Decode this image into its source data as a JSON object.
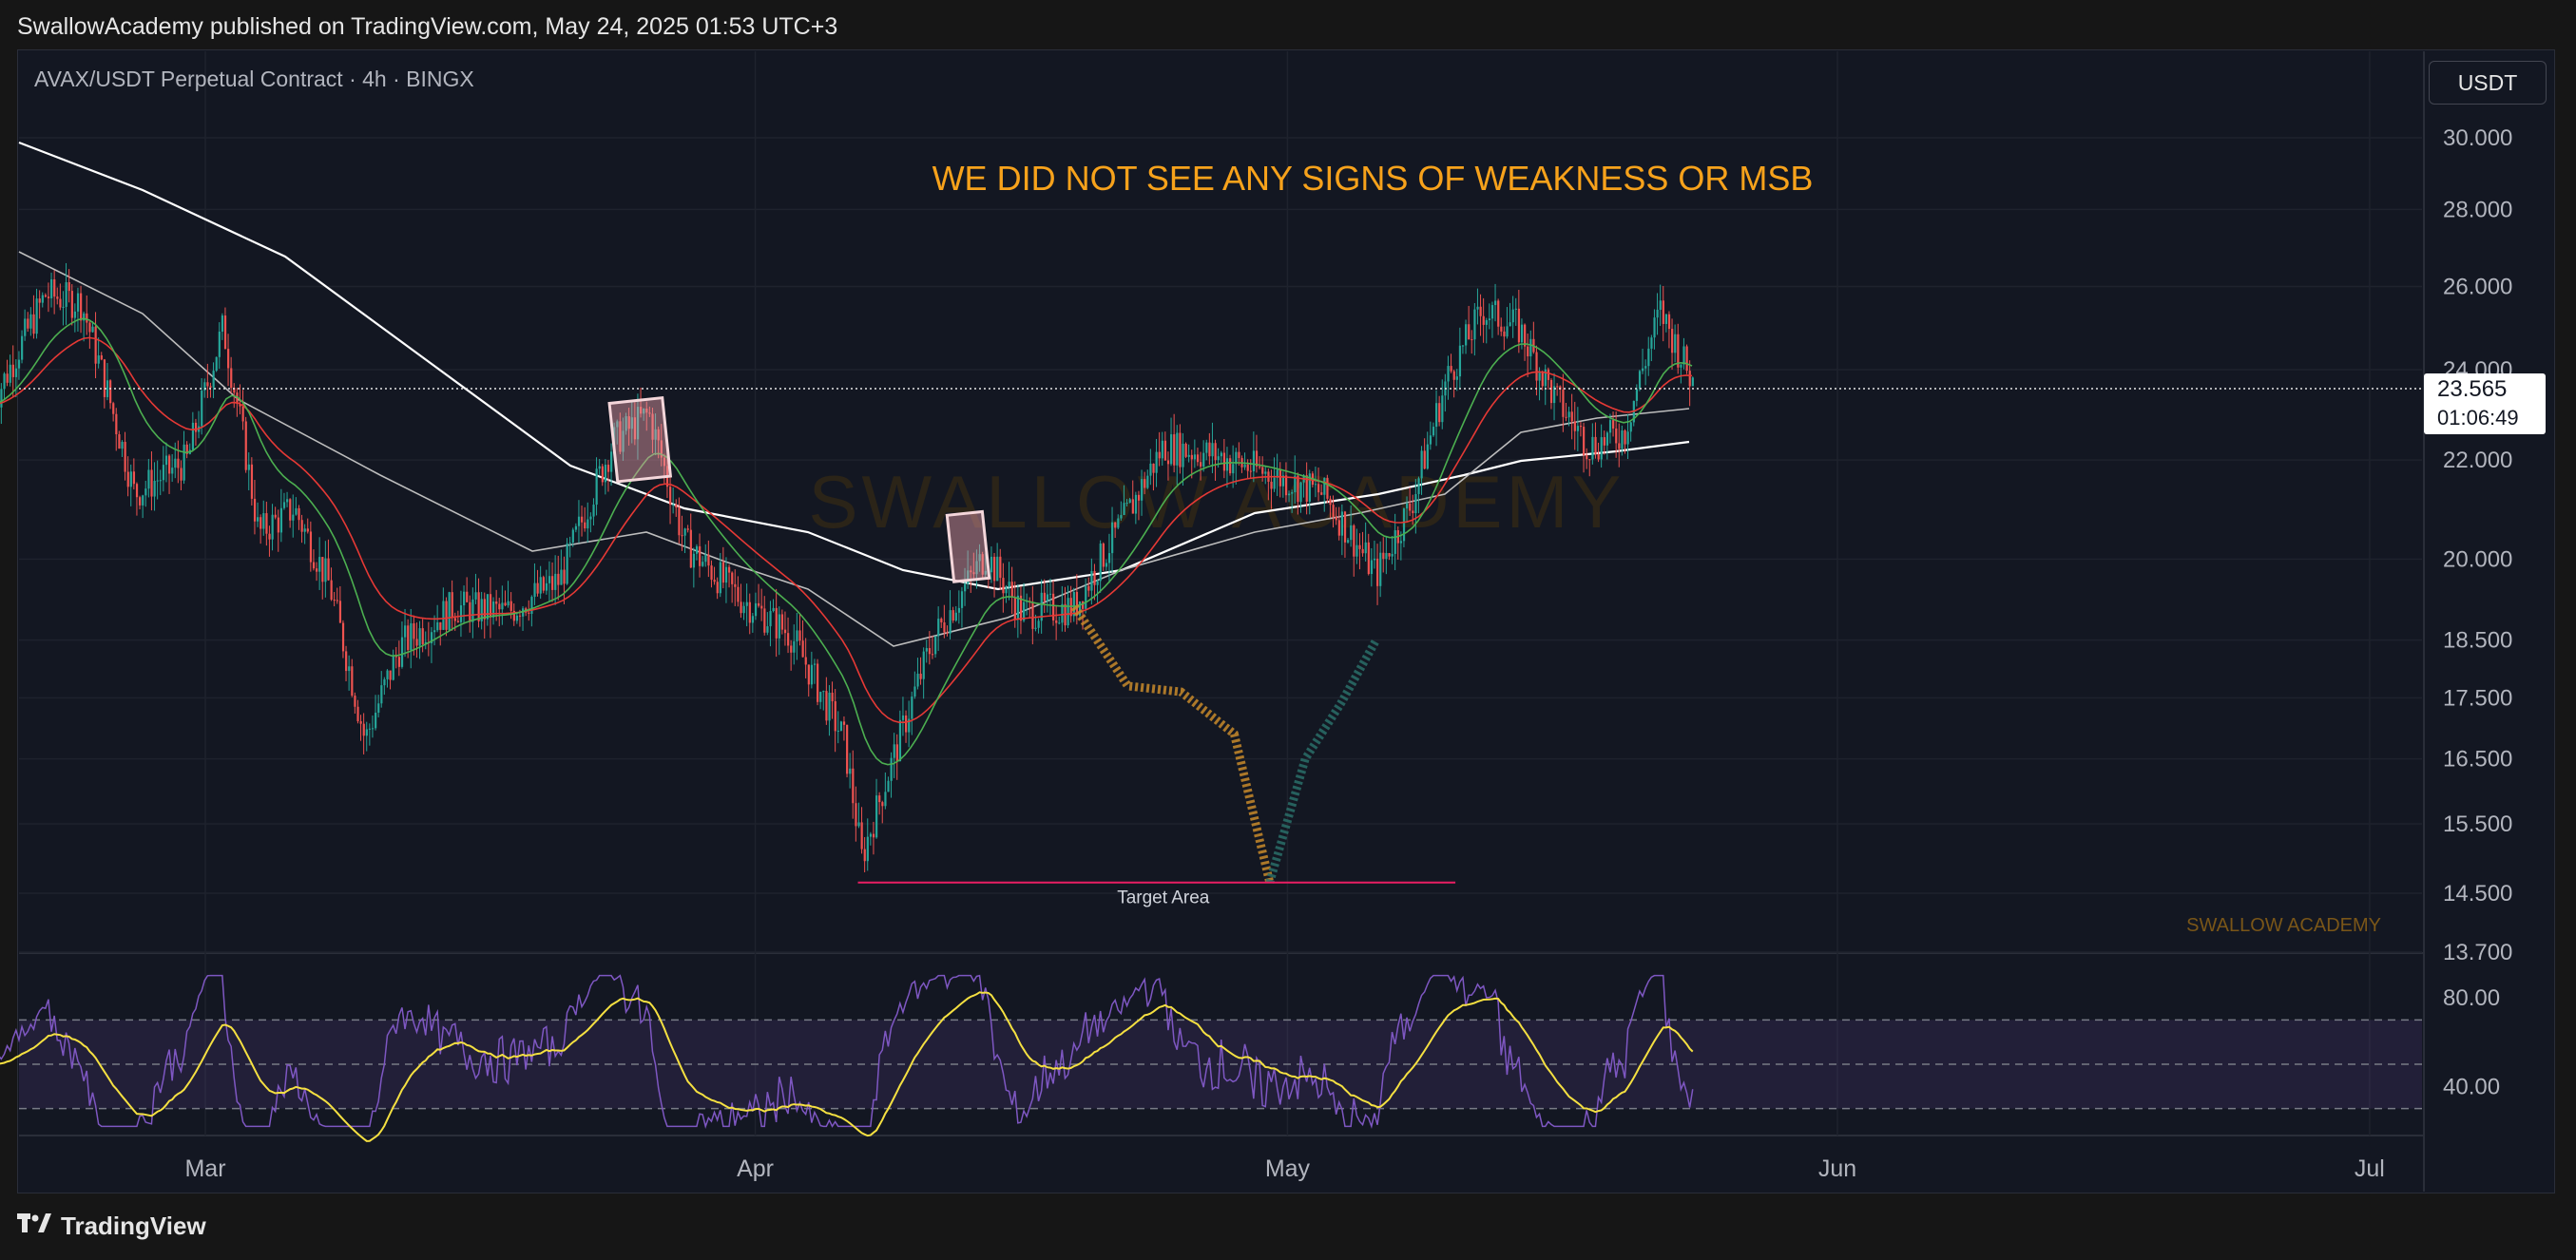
{
  "header": {
    "publisher_line": "SwallowAcademy published on TradingView.com, May 24, 2025 01:53 UTC+3"
  },
  "symbol_line": "AVAX/USDT Perpetual Contract · 4h · BINGX",
  "unit_button": "USDT",
  "footer": {
    "brand": "TradingView"
  },
  "watermark": "SWALLOW ACADEMY",
  "watermark_small": "SWALLOW ACADEMY",
  "colors": {
    "up": "#26a69a",
    "down": "#ef5350",
    "ema_fast": "#4caf50",
    "ema_mid": "#e53935",
    "ma_slow": "#ffffff",
    "ma_mid": "#bdbdbd",
    "projection_down": "#c88a2a",
    "projection_up": "#2a6e69",
    "annotation": "#f7a21b",
    "rsi": "#7e57c2",
    "rsi_ma": "#f5e041",
    "target": "#e91e63"
  },
  "chart_data": {
    "type": "candlestick",
    "annotation_title": "WE DID NOT SEE ANY SIGNS OF WEAKNESS OR MSB",
    "target_label": "Target Area",
    "target_price": 14.65,
    "price_axis": {
      "ticks": [
        "30.000",
        "28.000",
        "26.000",
        "24.000",
        "22.000",
        "20.000",
        "18.500",
        "17.500",
        "16.500",
        "15.500",
        "14.500",
        "13.700"
      ],
      "ylim": [
        13.7,
        30.0
      ],
      "scale": "log"
    },
    "last_price": "23.565",
    "countdown": "01:06:49",
    "time_axis": {
      "ticks": [
        "Mar",
        "Apr",
        "May",
        "Jun",
        "Jul"
      ]
    },
    "price_series": {
      "name": "AVAX/USDT",
      "points": [
        [
          "Feb 17",
          23.2
        ],
        [
          "Feb 20",
          25.8
        ],
        [
          "Feb 22",
          25.6
        ],
        [
          "Feb 25",
          21.3
        ],
        [
          "Feb 28",
          22.0
        ],
        [
          "Mar 2",
          25.0
        ],
        [
          "Mar 4",
          20.5
        ],
        [
          "Mar 6",
          21.0
        ],
        [
          "Mar 8",
          19.5
        ],
        [
          "Mar 10",
          16.8
        ],
        [
          "Mar 12",
          18.4
        ],
        [
          "Mar 15",
          19.1
        ],
        [
          "Mar 18",
          19.0
        ],
        [
          "Mar 21",
          19.6
        ],
        [
          "Mar 24",
          22.4
        ],
        [
          "Mar 26",
          23.0
        ],
        [
          "Mar 28",
          20.3
        ],
        [
          "Mar 31",
          19.3
        ],
        [
          "Apr 3",
          18.6
        ],
        [
          "Apr 6",
          16.8
        ],
        [
          "Apr 7",
          15.0
        ],
        [
          "Apr 9",
          16.7
        ],
        [
          "Apr 11",
          18.5
        ],
        [
          "Apr 14",
          20.1
        ],
        [
          "Apr 16",
          19.0
        ],
        [
          "Apr 19",
          19.1
        ],
        [
          "Apr 22",
          20.9
        ],
        [
          "Apr 24",
          22.3
        ],
        [
          "Apr 27",
          22.1
        ],
        [
          "Apr 30",
          21.7
        ],
        [
          "May 3",
          21.3
        ],
        [
          "May 6",
          19.7
        ],
        [
          "May 8",
          21.1
        ],
        [
          "May 10",
          23.8
        ],
        [
          "May 12",
          25.4
        ],
        [
          "May 14",
          25.0
        ],
        [
          "May 16",
          23.4
        ],
        [
          "May 18",
          22.3
        ],
        [
          "May 20",
          22.6
        ],
        [
          "May 22",
          25.4
        ],
        [
          "May 24",
          23.565
        ]
      ]
    },
    "ma_series": [
      {
        "values": [
          [
            0,
            29.6
          ],
          [
            0.15,
            27.3
          ],
          [
            0.3,
            24.3
          ],
          [
            0.45,
            21.9
          ],
          [
            0.6,
            20.2
          ],
          [
            0.75,
            19.7
          ],
          [
            0.9,
            20.0
          ],
          [
            1.0,
            21.3
          ]
        ]
      }
    ],
    "projection": {
      "down_path": [
        [
          "Apr 19",
          19.1
        ],
        [
          "Apr 22",
          17.7
        ],
        [
          "Apr 25",
          17.6
        ],
        [
          "Apr 28",
          16.9
        ],
        [
          "Apr 30",
          14.65
        ]
      ],
      "up_path": [
        [
          "Apr 30",
          14.65
        ],
        [
          "May 2",
          16.5
        ],
        [
          "May 4",
          17.4
        ],
        [
          "May 6",
          18.5
        ]
      ]
    },
    "rsi": {
      "ticks": [
        "80.00",
        "40.00"
      ],
      "ylim": [
        20,
        95
      ],
      "band": [
        30,
        70
      ],
      "mid": 50
    },
    "marked_boxes": [
      {
        "from": "Mar 24",
        "to": "Mar 27",
        "high": 23.3,
        "low": 21.6
      },
      {
        "from": "Apr 12",
        "to": "Apr 14",
        "high": 20.9,
        "low": 19.6
      }
    ]
  }
}
